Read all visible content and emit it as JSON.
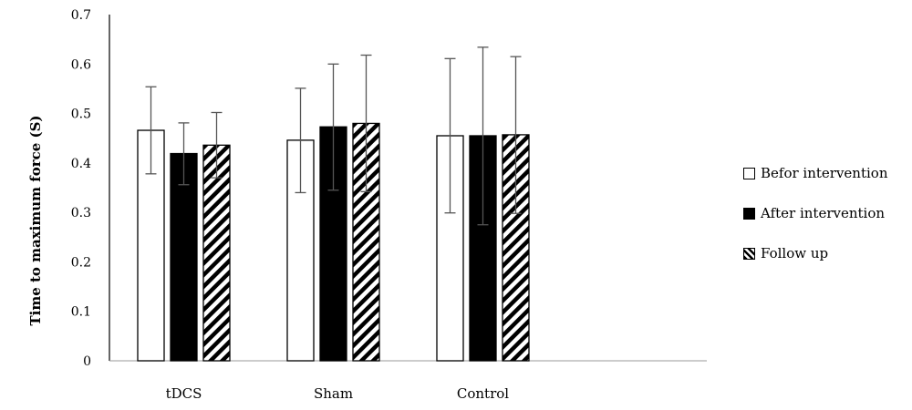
{
  "chart_data": {
    "type": "bar",
    "title": "",
    "xlabel": "",
    "ylabel": "Time to maximum force (S)",
    "ylim": [
      0,
      0.7
    ],
    "yticks": [
      "0",
      "0.1",
      "0.2",
      "0.3",
      "0.4",
      "0.5",
      "0.6",
      "0.7"
    ],
    "categories": [
      "tDCS",
      "Sham",
      "Control"
    ],
    "grid": false,
    "legend_position": "right",
    "series": [
      {
        "name": "Befor intervention",
        "fill": "white",
        "values": [
          0.466,
          0.446,
          0.455
        ],
        "error_low": [
          0.378,
          0.34,
          0.299
        ],
        "error_high": [
          0.554,
          0.551,
          0.611
        ]
      },
      {
        "name": "After intervention",
        "fill": "black",
        "values": [
          0.419,
          0.473,
          0.455
        ],
        "error_low": [
          0.356,
          0.345,
          0.275
        ],
        "error_high": [
          0.481,
          0.6,
          0.634
        ]
      },
      {
        "name": "Follow up",
        "fill": "hatched",
        "values": [
          0.436,
          0.48,
          0.457
        ],
        "error_low": [
          0.37,
          0.342,
          0.298
        ],
        "error_high": [
          0.502,
          0.618,
          0.615
        ]
      }
    ]
  }
}
